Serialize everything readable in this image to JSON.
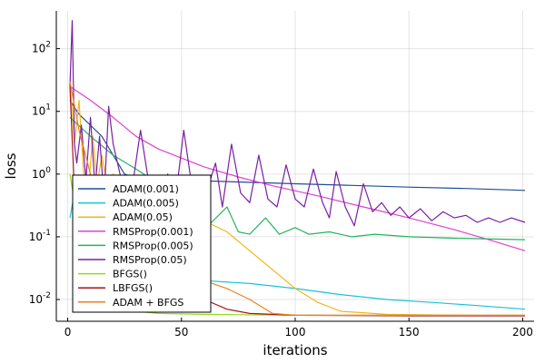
{
  "chart_data": {
    "type": "line",
    "title": "",
    "xlabel": "iterations",
    "ylabel": "loss",
    "xlim": [
      -5,
      205
    ],
    "ylim": [
      0.0045,
      400
    ],
    "yscale": "log",
    "x_ticks": [
      0,
      50,
      100,
      150,
      200
    ],
    "x_tick_labels": [
      "0",
      "50",
      "100",
      "150",
      "200"
    ],
    "y_ticks": [
      0.01,
      0.1,
      1,
      10,
      100
    ],
    "y_tick_labels": [
      {
        "base": "10",
        "exp": "-2"
      },
      {
        "base": "10",
        "exp": "-1"
      },
      {
        "base": "10",
        "exp": "0"
      },
      {
        "base": "10",
        "exp": "1"
      },
      {
        "base": "10",
        "exp": "2"
      }
    ],
    "grid": true,
    "legend_position": "bottom-left",
    "series": [
      {
        "name": "ADAM(0.001)",
        "color": "#1f4e96",
        "points": [
          [
            1,
            15
          ],
          [
            5,
            9
          ],
          [
            10,
            6
          ],
          [
            15,
            4
          ],
          [
            20,
            2
          ],
          [
            25,
            1
          ],
          [
            30,
            0.85
          ],
          [
            50,
            0.8
          ],
          [
            75,
            0.75
          ],
          [
            100,
            0.7
          ],
          [
            125,
            0.66
          ],
          [
            150,
            0.62
          ],
          [
            175,
            0.59
          ],
          [
            201,
            0.55
          ]
        ]
      },
      {
        "name": "ADAM(0.005)",
        "color": "#19c3d8",
        "points": [
          [
            1,
            0.2
          ],
          [
            3,
            0.5
          ],
          [
            6,
            0.5
          ],
          [
            10,
            0.15
          ],
          [
            20,
            0.06
          ],
          [
            30,
            0.03
          ],
          [
            40,
            0.022
          ],
          [
            60,
            0.02
          ],
          [
            80,
            0.018
          ],
          [
            100,
            0.015
          ],
          [
            120,
            0.012
          ],
          [
            140,
            0.01
          ],
          [
            160,
            0.009
          ],
          [
            180,
            0.008
          ],
          [
            201,
            0.007
          ]
        ]
      },
      {
        "name": "ADAM(0.05)",
        "color": "#f2b61e",
        "points": [
          [
            1,
            30
          ],
          [
            3,
            3
          ],
          [
            5,
            15
          ],
          [
            7,
            1
          ],
          [
            9,
            0.5
          ],
          [
            11,
            4
          ],
          [
            13,
            0.7
          ],
          [
            15,
            2
          ],
          [
            17,
            0.8
          ],
          [
            20,
            1
          ],
          [
            25,
            0.6
          ],
          [
            30,
            0.4
          ],
          [
            40,
            0.3
          ],
          [
            50,
            0.22
          ],
          [
            60,
            0.18
          ],
          [
            70,
            0.12
          ],
          [
            80,
            0.06
          ],
          [
            90,
            0.03
          ],
          [
            100,
            0.015
          ],
          [
            110,
            0.009
          ],
          [
            120,
            0.0065
          ],
          [
            140,
            0.0058
          ],
          [
            170,
            0.0056
          ],
          [
            201,
            0.0055
          ]
        ]
      },
      {
        "name": "RMSProp(0.001)",
        "color": "#e040d0",
        "points": [
          [
            1,
            25
          ],
          [
            10,
            15
          ],
          [
            20,
            8
          ],
          [
            30,
            4
          ],
          [
            40,
            2.5
          ],
          [
            50,
            1.8
          ],
          [
            60,
            1.3
          ],
          [
            75,
            0.9
          ],
          [
            90,
            0.65
          ],
          [
            110,
            0.45
          ],
          [
            130,
            0.3
          ],
          [
            150,
            0.2
          ],
          [
            170,
            0.13
          ],
          [
            185,
            0.09
          ],
          [
            201,
            0.06
          ]
        ]
      },
      {
        "name": "RMSProp(0.005)",
        "color": "#23b45f",
        "points": [
          [
            1,
            8
          ],
          [
            10,
            4
          ],
          [
            20,
            2
          ],
          [
            30,
            1.2
          ],
          [
            40,
            0.7
          ],
          [
            45,
            0.4
          ],
          [
            50,
            0.2
          ],
          [
            60,
            0.13
          ],
          [
            70,
            0.3
          ],
          [
            75,
            0.12
          ],
          [
            80,
            0.11
          ],
          [
            87,
            0.2
          ],
          [
            93,
            0.11
          ],
          [
            100,
            0.14
          ],
          [
            106,
            0.11
          ],
          [
            115,
            0.12
          ],
          [
            125,
            0.1
          ],
          [
            135,
            0.11
          ],
          [
            150,
            0.1
          ],
          [
            170,
            0.095
          ],
          [
            201,
            0.09
          ]
        ]
      },
      {
        "name": "RMSProp(0.05)",
        "color": "#7b1fa2",
        "points": [
          [
            1,
            25
          ],
          [
            2,
            280
          ],
          [
            3,
            3
          ],
          [
            4,
            1.5
          ],
          [
            6,
            6
          ],
          [
            8,
            0.8
          ],
          [
            10,
            8
          ],
          [
            12,
            0.6
          ],
          [
            14,
            4
          ],
          [
            16,
            0.4
          ],
          [
            18,
            12
          ],
          [
            20,
            3
          ],
          [
            24,
            0.7
          ],
          [
            28,
            0.5
          ],
          [
            32,
            5
          ],
          [
            36,
            0.6
          ],
          [
            40,
            0.4
          ],
          [
            44,
            1
          ],
          [
            47,
            0.3
          ],
          [
            51,
            5
          ],
          [
            55,
            0.5
          ],
          [
            60,
            0.4
          ],
          [
            65,
            1.5
          ],
          [
            68,
            0.3
          ],
          [
            72,
            3
          ],
          [
            76,
            0.5
          ],
          [
            80,
            0.35
          ],
          [
            84,
            2
          ],
          [
            88,
            0.4
          ],
          [
            92,
            0.3
          ],
          [
            96,
            1.4
          ],
          [
            100,
            0.4
          ],
          [
            104,
            0.3
          ],
          [
            108,
            1.2
          ],
          [
            112,
            0.35
          ],
          [
            115,
            0.2
          ],
          [
            118,
            1.1
          ],
          [
            122,
            0.3
          ],
          [
            126,
            0.15
          ],
          [
            130,
            0.7
          ],
          [
            134,
            0.25
          ],
          [
            138,
            0.35
          ],
          [
            142,
            0.22
          ],
          [
            146,
            0.3
          ],
          [
            150,
            0.2
          ],
          [
            155,
            0.28
          ],
          [
            160,
            0.18
          ],
          [
            165,
            0.25
          ],
          [
            170,
            0.2
          ],
          [
            175,
            0.22
          ],
          [
            180,
            0.17
          ],
          [
            185,
            0.2
          ],
          [
            190,
            0.17
          ],
          [
            195,
            0.2
          ],
          [
            201,
            0.17
          ]
        ]
      },
      {
        "name": "BFGS()",
        "color": "#9ad61a",
        "points": [
          [
            1,
            1
          ],
          [
            10,
            0.01
          ],
          [
            20,
            0.007
          ],
          [
            40,
            0.006
          ],
          [
            60,
            0.0058
          ],
          [
            100,
            0.0056
          ],
          [
            150,
            0.0056
          ],
          [
            201,
            0.0056
          ]
        ]
      },
      {
        "name": "LBFGS()",
        "color": "#a4161a",
        "points": [
          [
            1,
            25
          ],
          [
            3,
            0.5
          ],
          [
            10,
            0.1
          ],
          [
            20,
            0.04
          ],
          [
            30,
            0.02
          ],
          [
            40,
            0.015
          ],
          [
            50,
            0.012
          ],
          [
            60,
            0.01
          ],
          [
            70,
            0.007
          ],
          [
            80,
            0.006
          ],
          [
            100,
            0.0056
          ],
          [
            150,
            0.0055
          ],
          [
            201,
            0.0055
          ]
        ]
      },
      {
        "name": "ADAM + BFGS",
        "color": "#f07f1e",
        "points": [
          [
            1,
            30
          ],
          [
            5,
            5
          ],
          [
            10,
            1
          ],
          [
            20,
            0.3
          ],
          [
            30,
            0.1
          ],
          [
            40,
            0.05
          ],
          [
            50,
            0.03
          ],
          [
            60,
            0.02
          ],
          [
            70,
            0.015
          ],
          [
            80,
            0.01
          ],
          [
            90,
            0.006
          ],
          [
            100,
            0.0056
          ],
          [
            150,
            0.0056
          ],
          [
            201,
            0.0056
          ]
        ]
      }
    ]
  }
}
